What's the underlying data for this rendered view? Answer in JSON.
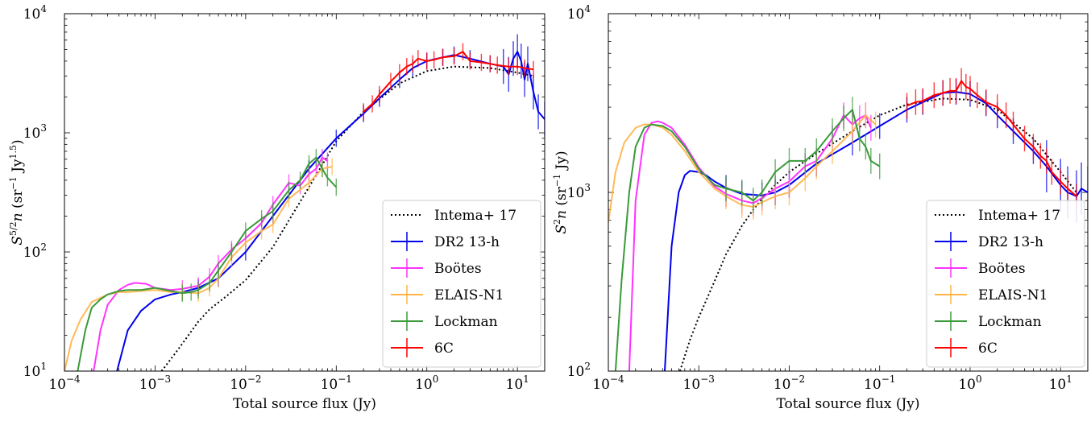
{
  "chart_data": [
    {
      "type": "line",
      "xlabel": "Total source flux (Jy)",
      "ylabel": "S5/2n (sr−1 Jy1.5)",
      "xscale": "log",
      "yscale": "log",
      "xlim": [
        0.0001,
        20
      ],
      "ylim": [
        10,
        10000
      ],
      "x_ticks": [
        {
          "value": 0.0001,
          "base": "10",
          "exp": "−4"
        },
        {
          "value": 0.001,
          "base": "10",
          "exp": "−3"
        },
        {
          "value": 0.01,
          "base": "10",
          "exp": "−2"
        },
        {
          "value": 0.1,
          "base": "10",
          "exp": "−1"
        },
        {
          "value": 1,
          "base": "10",
          "exp": "0"
        },
        {
          "value": 10,
          "base": "10",
          "exp": "1"
        }
      ],
      "y_ticks": [
        {
          "value": 10,
          "base": "10",
          "exp": "1"
        },
        {
          "value": 100,
          "base": "10",
          "exp": "2"
        },
        {
          "value": 1000,
          "base": "10",
          "exp": "3"
        },
        {
          "value": 10000,
          "base": "10",
          "exp": "4"
        }
      ],
      "legend_position": "bottom-right",
      "legend": [
        {
          "label": "Intema+ 17",
          "series": "intema"
        },
        {
          "label": "DR2 13-h",
          "series": "dr2"
        },
        {
          "label": "Boötes",
          "series": "bootes"
        },
        {
          "label": "ELAIS-N1",
          "series": "elais"
        },
        {
          "label": "Lockman",
          "series": "lockman"
        },
        {
          "label": "6C",
          "series": "sixc"
        }
      ],
      "series": [
        {
          "name": "Intema+ 17",
          "id": "intema",
          "color": "#000000",
          "style": "dotted",
          "x": [
            0.00118,
            0.0016,
            0.002,
            0.003,
            0.004,
            0.006,
            0.01,
            0.02,
            0.05,
            0.1,
            0.2,
            0.5,
            1,
            2,
            5,
            10,
            15
          ],
          "y": [
            10,
            13.5,
            17,
            26,
            33,
            42,
            58,
            110,
            350,
            850,
            1500,
            2600,
            3300,
            3600,
            3500,
            3200,
            3000
          ]
        },
        {
          "name": "DR2 13-h",
          "id": "dr2",
          "color": "#0000ee",
          "style": "solid",
          "x": [
            0.00038,
            0.0005,
            0.0007,
            0.001,
            0.0015,
            0.002,
            0.003,
            0.005,
            0.01,
            0.02,
            0.05,
            0.1,
            0.2,
            0.3,
            0.5,
            0.7,
            1,
            1.5,
            2,
            3,
            5,
            7,
            8,
            9,
            10,
            11,
            12,
            13,
            15,
            17,
            20
          ],
          "y": [
            10,
            22,
            32,
            40,
            44,
            46,
            50,
            60,
            100,
            200,
            500,
            900,
            1450,
            1950,
            2800,
            3500,
            4000,
            4300,
            4500,
            4200,
            3800,
            3600,
            3100,
            4200,
            4800,
            4000,
            2800,
            3800,
            2200,
            1500,
            1300
          ]
        },
        {
          "name": "Boötes",
          "id": "bootes",
          "color": "#ff33ff",
          "style": "solid",
          "x": [
            0.00021,
            0.00025,
            0.0003,
            0.0004,
            0.0005,
            0.0006,
            0.0008,
            0.001,
            0.0015,
            0.002,
            0.003,
            0.004,
            0.005,
            0.007,
            0.01,
            0.015,
            0.02,
            0.03,
            0.04,
            0.05,
            0.06,
            0.07,
            0.08
          ],
          "y": [
            10,
            22,
            36,
            48,
            53,
            55,
            54,
            50,
            48,
            49,
            52,
            62,
            80,
            105,
            130,
            175,
            250,
            380,
            360,
            450,
            500,
            620,
            580
          ]
        },
        {
          "name": "ELAIS-N1",
          "id": "elais",
          "color": "#ffb347",
          "style": "solid",
          "x": [
            0.0001,
            0.00012,
            0.00015,
            0.0002,
            0.0003,
            0.0004,
            0.0005,
            0.0007,
            0.001,
            0.0015,
            0.002,
            0.003,
            0.004,
            0.005,
            0.007,
            0.01,
            0.015,
            0.02,
            0.03,
            0.05,
            0.07,
            0.09
          ],
          "y": [
            10,
            18,
            27,
            38,
            44,
            46,
            46,
            47,
            48,
            46,
            46,
            45,
            50,
            60,
            90,
            120,
            150,
            170,
            280,
            380,
            500,
            520
          ]
        },
        {
          "name": "Lockman",
          "id": "lockman",
          "color": "#3a9a3a",
          "style": "solid",
          "x": [
            0.00014,
            0.00017,
            0.0002,
            0.00025,
            0.0003,
            0.0004,
            0.0005,
            0.0007,
            0.001,
            0.0015,
            0.002,
            0.0025,
            0.003,
            0.004,
            0.005,
            0.007,
            0.01,
            0.015,
            0.02,
            0.03,
            0.04,
            0.05,
            0.06,
            0.07,
            0.08,
            0.1
          ],
          "y": [
            10,
            22,
            34,
            40,
            44,
            47,
            48,
            48,
            50,
            47,
            45,
            46,
            48,
            55,
            70,
            100,
            150,
            190,
            220,
            330,
            400,
            550,
            620,
            500,
            420,
            350
          ]
        },
        {
          "name": "6C",
          "id": "sixc",
          "color": "#ff0000",
          "style": "solid",
          "x": [
            0.2,
            0.25,
            0.3,
            0.4,
            0.5,
            0.6,
            0.7,
            0.8,
            1,
            1.2,
            1.5,
            2,
            2.5,
            3,
            4,
            5,
            6,
            8,
            10,
            12,
            15
          ],
          "y": [
            1500,
            1750,
            2100,
            2700,
            3200,
            3600,
            3800,
            4200,
            4000,
            4100,
            4300,
            4400,
            4800,
            4000,
            3900,
            3800,
            3700,
            3600,
            3600,
            3500,
            3400
          ]
        }
      ]
    },
    {
      "type": "line",
      "xlabel": "Total source flux (Jy)",
      "ylabel": "S2n (sr−1 Jy)",
      "xscale": "log",
      "yscale": "log",
      "xlim": [
        0.0001,
        20
      ],
      "ylim": [
        100,
        10000
      ],
      "x_ticks": [
        {
          "value": 0.0001,
          "base": "10",
          "exp": "−4"
        },
        {
          "value": 0.001,
          "base": "10",
          "exp": "−3"
        },
        {
          "value": 0.01,
          "base": "10",
          "exp": "−2"
        },
        {
          "value": 0.1,
          "base": "10",
          "exp": "−1"
        },
        {
          "value": 1,
          "base": "10",
          "exp": "0"
        },
        {
          "value": 10,
          "base": "10",
          "exp": "1"
        }
      ],
      "y_ticks": [
        {
          "value": 100,
          "base": "10",
          "exp": "2"
        },
        {
          "value": 1000,
          "base": "10",
          "exp": "3"
        },
        {
          "value": 10000,
          "base": "10",
          "exp": "4"
        }
      ],
      "legend_position": "bottom-right",
      "legend": [
        {
          "label": "Intema+ 17",
          "series": "intema"
        },
        {
          "label": "DR2 13-h",
          "series": "dr2"
        },
        {
          "label": "Boötes",
          "series": "bootes"
        },
        {
          "label": "ELAIS-N1",
          "series": "elais"
        },
        {
          "label": "Lockman",
          "series": "lockman"
        },
        {
          "label": "6C",
          "series": "sixc"
        }
      ],
      "series": [
        {
          "name": "Intema+ 17",
          "id": "intema",
          "color": "#000000",
          "style": "dotted",
          "x": [
            0.00062,
            0.0008,
            0.001,
            0.0015,
            0.002,
            0.003,
            0.004,
            0.005,
            0.007,
            0.01,
            0.02,
            0.05,
            0.1,
            0.2,
            0.5,
            1,
            2,
            5,
            10,
            15
          ],
          "y": [
            100,
            150,
            200,
            320,
            450,
            650,
            800,
            920,
            1100,
            1300,
            1650,
            2200,
            2700,
            3100,
            3350,
            3300,
            2900,
            2000,
            1300,
            1000
          ]
        },
        {
          "name": "DR2 13-h",
          "id": "dr2",
          "color": "#0000ee",
          "style": "solid",
          "x": [
            0.00042,
            0.0005,
            0.0006,
            0.0007,
            0.0008,
            0.001,
            0.0012,
            0.0015,
            0.002,
            0.003,
            0.005,
            0.007,
            0.01,
            0.02,
            0.05,
            0.1,
            0.2,
            0.3,
            0.5,
            0.7,
            1,
            1.5,
            2,
            3,
            5,
            7,
            10,
            12,
            15,
            17,
            20
          ],
          "y": [
            100,
            500,
            1000,
            1250,
            1320,
            1300,
            1250,
            1150,
            1060,
            980,
            960,
            1000,
            1100,
            1450,
            1900,
            2350,
            2900,
            3200,
            3600,
            3650,
            3550,
            3150,
            2700,
            2200,
            1700,
            1400,
            1100,
            1000,
            950,
            1050,
            1000
          ]
        },
        {
          "name": "Boötes",
          "id": "bootes",
          "color": "#ff33ff",
          "style": "solid",
          "x": [
            0.00017,
            0.0002,
            0.00025,
            0.0003,
            0.00035,
            0.0004,
            0.0005,
            0.0007,
            0.001,
            0.0015,
            0.002,
            0.003,
            0.004,
            0.005,
            0.007,
            0.01,
            0.015,
            0.02,
            0.03,
            0.04,
            0.05,
            0.06,
            0.07,
            0.08
          ],
          "y": [
            100,
            900,
            2100,
            2450,
            2500,
            2450,
            2300,
            1850,
            1380,
            1080,
            980,
            900,
            870,
            930,
            1050,
            1150,
            1400,
            1500,
            2000,
            2700,
            2400,
            2600,
            2700,
            2300
          ]
        },
        {
          "name": "ELAIS-N1",
          "id": "elais",
          "color": "#ffb347",
          "style": "solid",
          "x": [
            0.0001,
            0.00012,
            0.00015,
            0.0002,
            0.00025,
            0.0003,
            0.0004,
            0.0005,
            0.0007,
            0.001,
            0.0015,
            0.002,
            0.003,
            0.004,
            0.005,
            0.007,
            0.01,
            0.015,
            0.02,
            0.03,
            0.05,
            0.07,
            0.09
          ],
          "y": [
            680,
            1300,
            1900,
            2300,
            2400,
            2400,
            2300,
            2100,
            1700,
            1300,
            1050,
            950,
            850,
            830,
            880,
            950,
            1000,
            1200,
            1400,
            1700,
            2200,
            2700,
            2400
          ]
        },
        {
          "name": "Lockman",
          "id": "lockman",
          "color": "#3a9a3a",
          "style": "solid",
          "x": [
            0.00012,
            0.00014,
            0.00017,
            0.0002,
            0.00025,
            0.0003,
            0.0004,
            0.0005,
            0.0007,
            0.001,
            0.0015,
            0.002,
            0.003,
            0.004,
            0.005,
            0.007,
            0.01,
            0.015,
            0.02,
            0.03,
            0.04,
            0.05,
            0.06,
            0.07,
            0.08,
            0.1
          ],
          "y": [
            100,
            320,
            1000,
            1800,
            2300,
            2400,
            2350,
            2200,
            1800,
            1350,
            1100,
            1050,
            1000,
            900,
            1000,
            1300,
            1500,
            1500,
            1700,
            2200,
            2600,
            2900,
            2000,
            1800,
            1500,
            1400
          ]
        },
        {
          "name": "6C",
          "id": "sixc",
          "color": "#ff0000",
          "style": "solid",
          "x": [
            0.2,
            0.25,
            0.3,
            0.4,
            0.5,
            0.6,
            0.7,
            0.8,
            0.9,
            1,
            1.2,
            1.5,
            2,
            2.5,
            3,
            4,
            5,
            6,
            7,
            8,
            10,
            12,
            15
          ],
          "y": [
            3050,
            3200,
            3250,
            3500,
            3600,
            3700,
            3700,
            4200,
            3900,
            3800,
            3500,
            3200,
            3000,
            2700,
            2400,
            2000,
            1800,
            1600,
            1500,
            1300,
            1150,
            1050,
            950
          ]
        }
      ]
    }
  ]
}
